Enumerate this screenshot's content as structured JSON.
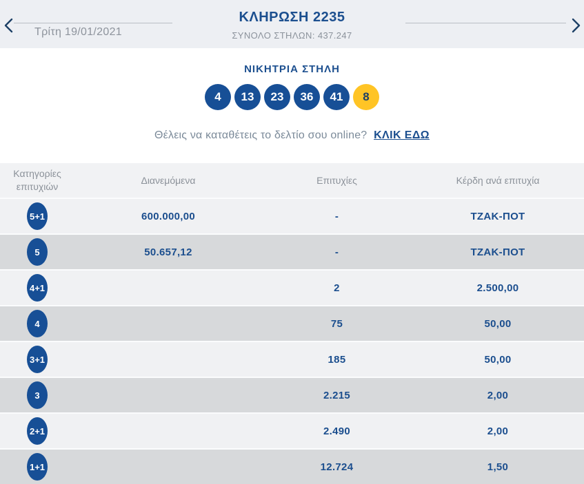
{
  "header": {
    "title": "ΚΛΗΡΩΣΗ 2235",
    "subtitle": "ΣΥΝΟΛΟ ΣΤΗΛΩΝ: 437.247",
    "date": "Τρίτη 19/01/2021"
  },
  "winning": {
    "heading": "ΝΙΚΗΤΡΙΑ ΣΤΗΛΗ",
    "numbers": [
      "4",
      "13",
      "23",
      "36",
      "41"
    ],
    "joker": "8"
  },
  "cta": {
    "text": "Θέλεις να καταθέτεις το δελτίο σου online?",
    "link": "ΚΛΙΚ ΕΔΩ"
  },
  "table": {
    "headers": [
      "Κατηγορίες επιτυχιών",
      "Διανεμόμενα",
      "Επιτυχίες",
      "Κέρδη ανά επιτυχία"
    ],
    "rows": [
      {
        "category": "5+1",
        "distributed": "600.000,00",
        "winners": "-",
        "prize": "ΤΖΑΚ-ΠΟΤ"
      },
      {
        "category": "5",
        "distributed": "50.657,12",
        "winners": "-",
        "prize": "ΤΖΑΚ-ΠΟΤ"
      },
      {
        "category": "4+1",
        "distributed": "",
        "winners": "2",
        "prize": "2.500,00"
      },
      {
        "category": "4",
        "distributed": "",
        "winners": "75",
        "prize": "50,00"
      },
      {
        "category": "3+1",
        "distributed": "",
        "winners": "185",
        "prize": "50,00"
      },
      {
        "category": "3",
        "distributed": "",
        "winners": "2.215",
        "prize": "2,00"
      },
      {
        "category": "2+1",
        "distributed": "",
        "winners": "2.490",
        "prize": "2,00"
      },
      {
        "category": "1+1",
        "distributed": "",
        "winners": "12.724",
        "prize": "1,50"
      }
    ]
  },
  "colors": {
    "navy_text": "#1b4e8e",
    "ball_blue": "#174f96",
    "joker_yellow": "#ffc425",
    "header_bg": "#edeff3",
    "row_light": "#f0f1f3",
    "row_dark": "#d7d9db"
  }
}
